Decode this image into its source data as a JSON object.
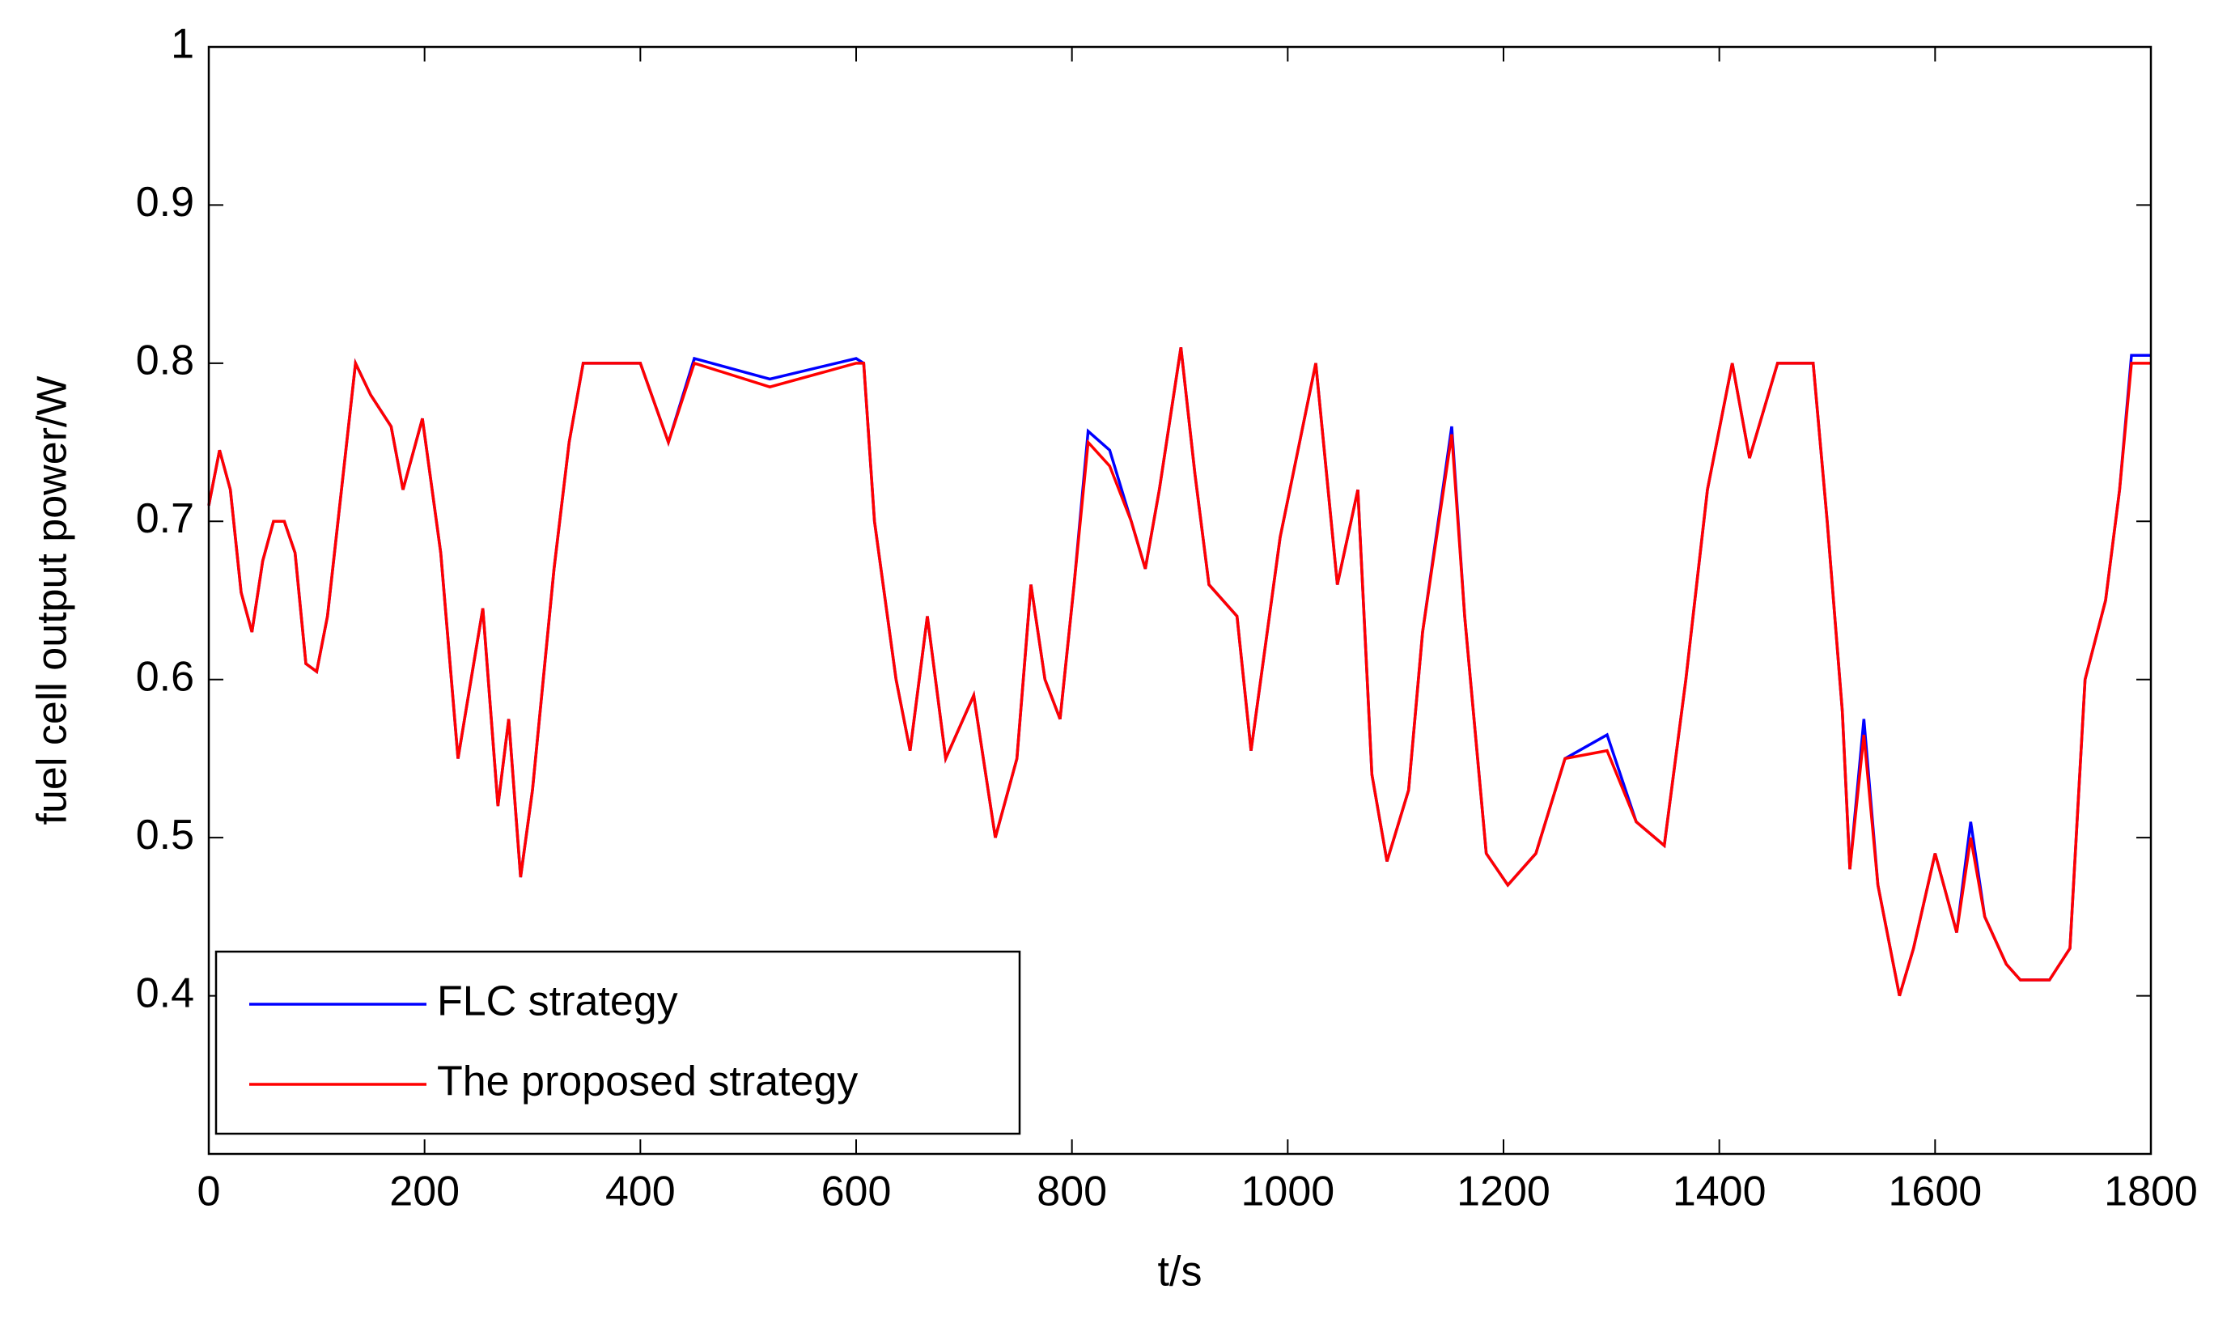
{
  "chart_data": {
    "type": "line",
    "xlabel": "t/s",
    "ylabel": "fuel cell output power/W",
    "x": [
      0,
      10,
      20,
      30,
      40,
      50,
      60,
      70,
      80,
      90,
      100,
      110,
      136,
      150,
      169,
      180,
      198,
      215,
      231,
      254,
      268,
      278,
      289,
      300,
      320,
      334,
      347,
      400,
      426,
      450,
      520,
      600,
      607,
      617,
      637,
      650,
      666,
      683,
      709,
      729,
      749,
      762,
      775,
      789,
      802,
      815,
      835,
      855,
      868,
      881,
      901,
      914,
      927,
      953,
      966,
      993,
      1026,
      1046,
      1065,
      1078,
      1092,
      1112,
      1125,
      1152,
      1164,
      1184,
      1204,
      1230,
      1257,
      1296,
      1323,
      1349,
      1369,
      1389,
      1412,
      1428,
      1454,
      1487,
      1500,
      1514,
      1521,
      1534,
      1547,
      1567,
      1580,
      1600,
      1620,
      1633,
      1646,
      1666,
      1679,
      1706,
      1725,
      1739,
      1758,
      1771,
      1782,
      1800
    ],
    "series": [
      {
        "name": "FLC strategy",
        "color": "#0000ff",
        "values": [
          0.71,
          0.745,
          0.72,
          0.655,
          0.63,
          0.675,
          0.7,
          0.7,
          0.68,
          0.61,
          0.605,
          0.64,
          0.8,
          0.78,
          0.76,
          0.72,
          0.765,
          0.68,
          0.55,
          0.645,
          0.52,
          0.575,
          0.475,
          0.53,
          0.67,
          0.75,
          0.8,
          0.8,
          0.75,
          0.803,
          0.79,
          0.803,
          0.8,
          0.7,
          0.6,
          0.555,
          0.64,
          0.55,
          0.59,
          0.5,
          0.55,
          0.66,
          0.6,
          0.575,
          0.66,
          0.757,
          0.745,
          0.7,
          0.67,
          0.72,
          0.81,
          0.73,
          0.66,
          0.64,
          0.555,
          0.69,
          0.8,
          0.66,
          0.72,
          0.54,
          0.485,
          0.53,
          0.63,
          0.76,
          0.64,
          0.49,
          0.47,
          0.49,
          0.55,
          0.565,
          0.51,
          0.495,
          0.6,
          0.72,
          0.8,
          0.74,
          0.8,
          0.8,
          0.7,
          0.58,
          0.48,
          0.575,
          0.47,
          0.4,
          0.43,
          0.49,
          0.44,
          0.51,
          0.45,
          0.42,
          0.41,
          0.41,
          0.43,
          0.6,
          0.65,
          0.72,
          0.805,
          0.805
        ]
      },
      {
        "name": "The proposed strategy",
        "color": "#ff0000",
        "values": [
          0.71,
          0.745,
          0.72,
          0.655,
          0.63,
          0.675,
          0.7,
          0.7,
          0.68,
          0.61,
          0.605,
          0.64,
          0.8,
          0.78,
          0.76,
          0.72,
          0.765,
          0.68,
          0.55,
          0.645,
          0.52,
          0.575,
          0.475,
          0.53,
          0.67,
          0.75,
          0.8,
          0.8,
          0.75,
          0.8,
          0.785,
          0.8,
          0.8,
          0.7,
          0.6,
          0.555,
          0.64,
          0.55,
          0.59,
          0.5,
          0.55,
          0.66,
          0.6,
          0.575,
          0.66,
          0.75,
          0.735,
          0.7,
          0.67,
          0.72,
          0.81,
          0.73,
          0.66,
          0.64,
          0.555,
          0.69,
          0.8,
          0.66,
          0.72,
          0.54,
          0.485,
          0.53,
          0.63,
          0.755,
          0.64,
          0.49,
          0.47,
          0.49,
          0.55,
          0.555,
          0.51,
          0.495,
          0.6,
          0.72,
          0.8,
          0.74,
          0.8,
          0.8,
          0.7,
          0.58,
          0.48,
          0.565,
          0.47,
          0.4,
          0.43,
          0.49,
          0.44,
          0.5,
          0.45,
          0.42,
          0.41,
          0.41,
          0.43,
          0.6,
          0.65,
          0.72,
          0.8,
          0.8
        ]
      }
    ],
    "xlim": [
      0,
      1800
    ],
    "xticks": [
      0,
      200,
      400,
      600,
      800,
      1000,
      1200,
      1400,
      1600,
      1800
    ],
    "ylim": [
      0.3,
      1
    ],
    "yticks": [
      0.4,
      0.5,
      0.6,
      0.7,
      0.8,
      0.9,
      1
    ],
    "legend": "lower left",
    "grid": false
  }
}
